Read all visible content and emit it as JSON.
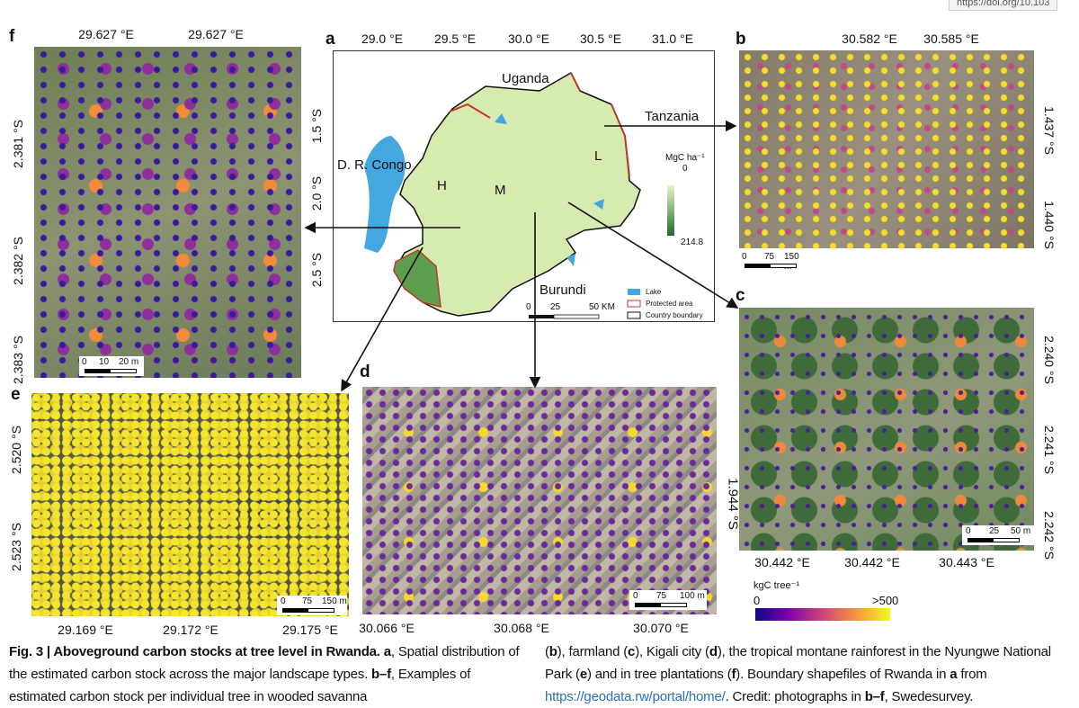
{
  "browser_url": "https://doi.org/10.103",
  "panels": {
    "a": {
      "label": "a",
      "top_ticks": [
        "29.0 °E",
        "29.5 °E",
        "30.0 °E",
        "30.5 °E",
        "31.0 °E"
      ],
      "left_ticks": [
        "1.5 °S",
        "2.0 °S",
        "2.5 °S"
      ],
      "places": [
        "Uganda",
        "Tanzania",
        "D. R. Congo",
        "Burundi",
        "H",
        "M",
        "L"
      ],
      "colorbar": {
        "title": "MgC ha⁻¹",
        "min": "0",
        "max": "214.8"
      },
      "legend": [
        "Lake",
        "Protected area",
        "Country boundary"
      ],
      "scale_bar": [
        "0",
        "25",
        "50 KM"
      ]
    },
    "b": {
      "label": "b",
      "top_ticks": [
        "30.582 °E",
        "30.585 °E"
      ],
      "right_ticks": [
        "1.437 °S",
        "1.440 °S"
      ],
      "scale_bar": [
        "0",
        "75",
        "150 m"
      ]
    },
    "c": {
      "label": "c",
      "right_ticks": [
        "2.240 °S",
        "2.241 °S",
        "2.242 °S"
      ],
      "bottom_ticks": [
        "30.442 °E",
        "30.442 °E",
        "30.443 °E"
      ],
      "scale_bar": [
        "0",
        "25",
        "50 m"
      ]
    },
    "d": {
      "label": "d",
      "right_ticks": [
        "1.944 °S"
      ],
      "bottom_ticks": [
        "30.066 °E",
        "30.068 °E",
        "30.070 °E"
      ],
      "scale_bar": [
        "0",
        "75",
        "100 m"
      ]
    },
    "e": {
      "label": "e",
      "left_ticks": [
        "2.520 °S",
        "2.523 °S"
      ],
      "bottom_ticks": [
        "29.169 °E",
        "29.172 °E",
        "29.175 °E"
      ],
      "scale_bar": [
        "0",
        "75",
        "150 m"
      ]
    },
    "f": {
      "label": "f",
      "top_ticks": [
        "29.627 °E",
        "29.627 °E"
      ],
      "left_ticks": [
        "2.381 °S",
        "2.382 °S",
        "2.383 °S"
      ],
      "scale_bar": [
        "0",
        "10",
        "20 m"
      ]
    }
  },
  "colorbar": {
    "title": "kgC tree⁻¹",
    "min": "0",
    "max": ">500"
  },
  "caption": {
    "left": [
      {
        "text": "Fig. 3 | Aboveground carbon stocks at tree level in Rwanda. a",
        "bold": true
      },
      {
        "text": ", Spatial distribution of the estimated carbon stock across the major landscape types. ",
        "bold": false
      },
      {
        "text": "b–f",
        "bold": true
      },
      {
        "text": ", Examples of estimated carbon stock per individual tree in wooded savanna",
        "bold": false
      }
    ],
    "right": [
      {
        "text": "(",
        "bold": false
      },
      {
        "text": "b",
        "bold": true
      },
      {
        "text": "), farmland (",
        "bold": false
      },
      {
        "text": "c",
        "bold": true
      },
      {
        "text": "), Kigali city (",
        "bold": false
      },
      {
        "text": "d",
        "bold": true
      },
      {
        "text": "), the tropical montane rainforest in the Nyungwe National Park (",
        "bold": false
      },
      {
        "text": "e",
        "bold": true
      },
      {
        "text": ") and in tree plantations (",
        "bold": false
      },
      {
        "text": "f",
        "bold": true
      },
      {
        "text": "). Boundary shapefiles of Rwanda in ",
        "bold": false
      },
      {
        "text": "a",
        "bold": true
      },
      {
        "text": " from ",
        "bold": false
      },
      {
        "text": "https://geodata.rw/portal/home/",
        "bold": false,
        "link": true
      },
      {
        "text": ". Credit: photographs in ",
        "bold": false
      },
      {
        "text": "b–f",
        "bold": true
      },
      {
        "text": ", Swedesurvey.",
        "bold": false
      }
    ]
  }
}
